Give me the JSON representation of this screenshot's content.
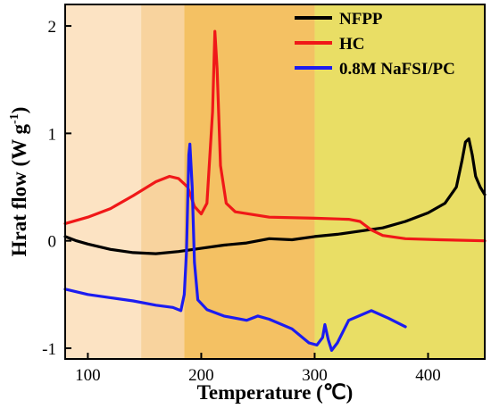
{
  "chart_data": {
    "type": "line",
    "xlabel": "Temperature (℃)",
    "ylabel_main": "Hrat flow (W g",
    "ylabel_sup": "-1",
    "ylabel_close": ")",
    "xlim": [
      80,
      450
    ],
    "ylim": [
      -1.1,
      2.2
    ],
    "x_ticks": [
      100,
      200,
      300,
      400
    ],
    "y_ticks": [
      -1,
      0,
      1,
      2
    ],
    "legend_position": "top-right",
    "background_bands": [
      {
        "from": 80,
        "to": 147,
        "color": "#FCE3C3"
      },
      {
        "from": 147,
        "to": 185,
        "color": "#F8D39E"
      },
      {
        "from": 185,
        "to": 300,
        "color": "#F4C163"
      },
      {
        "from": 300,
        "to": 450,
        "color": "#E9DE65"
      }
    ],
    "series": [
      {
        "name": "NFPP",
        "color": "#000000",
        "points": [
          [
            80,
            0.04
          ],
          [
            90,
            0.0
          ],
          [
            100,
            -0.03
          ],
          [
            120,
            -0.08
          ],
          [
            140,
            -0.11
          ],
          [
            160,
            -0.12
          ],
          [
            180,
            -0.1
          ],
          [
            200,
            -0.07
          ],
          [
            220,
            -0.04
          ],
          [
            240,
            -0.02
          ],
          [
            260,
            0.02
          ],
          [
            280,
            0.01
          ],
          [
            300,
            0.04
          ],
          [
            320,
            0.06
          ],
          [
            340,
            0.09
          ],
          [
            360,
            0.12
          ],
          [
            380,
            0.18
          ],
          [
            400,
            0.26
          ],
          [
            415,
            0.35
          ],
          [
            425,
            0.5
          ],
          [
            430,
            0.75
          ],
          [
            433,
            0.92
          ],
          [
            436,
            0.95
          ],
          [
            439,
            0.8
          ],
          [
            442,
            0.6
          ],
          [
            446,
            0.5
          ],
          [
            450,
            0.43
          ]
        ]
      },
      {
        "name": "HC",
        "color": "#F01818",
        "points": [
          [
            80,
            0.16
          ],
          [
            100,
            0.22
          ],
          [
            120,
            0.3
          ],
          [
            140,
            0.42
          ],
          [
            160,
            0.55
          ],
          [
            172,
            0.6
          ],
          [
            180,
            0.58
          ],
          [
            188,
            0.5
          ],
          [
            194,
            0.32
          ],
          [
            200,
            0.25
          ],
          [
            205,
            0.35
          ],
          [
            210,
            1.2
          ],
          [
            212,
            1.95
          ],
          [
            214,
            1.6
          ],
          [
            217,
            0.7
          ],
          [
            222,
            0.35
          ],
          [
            230,
            0.27
          ],
          [
            260,
            0.22
          ],
          [
            300,
            0.21
          ],
          [
            330,
            0.2
          ],
          [
            340,
            0.18
          ],
          [
            350,
            0.1
          ],
          [
            360,
            0.05
          ],
          [
            380,
            0.02
          ],
          [
            410,
            0.01
          ],
          [
            450,
            0.0
          ]
        ]
      },
      {
        "name": "0.8M NaFSI/PC",
        "color": "#1C1CF0",
        "points": [
          [
            80,
            -0.45
          ],
          [
            100,
            -0.5
          ],
          [
            120,
            -0.53
          ],
          [
            140,
            -0.56
          ],
          [
            160,
            -0.6
          ],
          [
            175,
            -0.62
          ],
          [
            182,
            -0.65
          ],
          [
            185,
            -0.5
          ],
          [
            187,
            -0.1
          ],
          [
            189,
            0.8
          ],
          [
            190,
            0.9
          ],
          [
            192,
            0.5
          ],
          [
            194,
            -0.2
          ],
          [
            197,
            -0.55
          ],
          [
            205,
            -0.64
          ],
          [
            220,
            -0.7
          ],
          [
            240,
            -0.74
          ],
          [
            250,
            -0.7
          ],
          [
            260,
            -0.73
          ],
          [
            280,
            -0.82
          ],
          [
            295,
            -0.95
          ],
          [
            302,
            -0.97
          ],
          [
            307,
            -0.9
          ],
          [
            309,
            -0.78
          ],
          [
            312,
            -0.92
          ],
          [
            315,
            -1.02
          ],
          [
            320,
            -0.95
          ],
          [
            330,
            -0.74
          ],
          [
            350,
            -0.65
          ],
          [
            365,
            -0.72
          ],
          [
            380,
            -0.8
          ]
        ]
      }
    ]
  }
}
